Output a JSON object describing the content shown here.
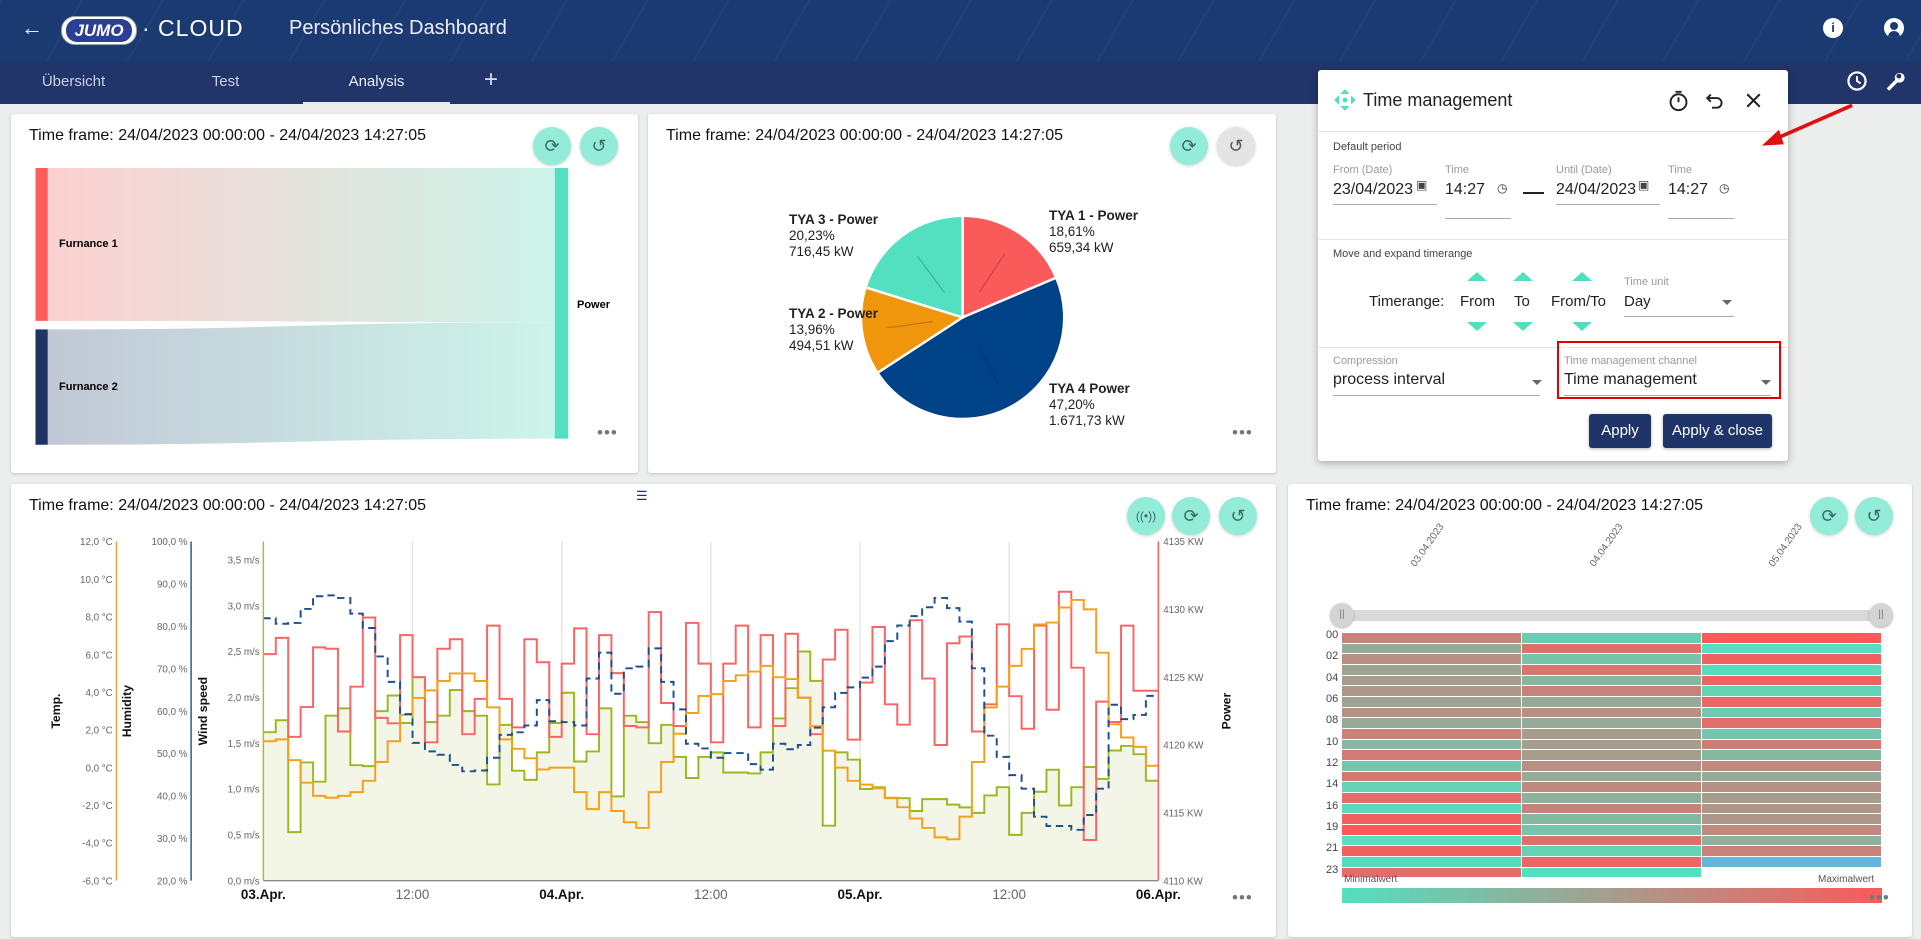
{
  "header": {
    "logo_text": "JUMO",
    "logo_suffix": "· CLOUD",
    "title": "Persönliches Dashboard",
    "icons": [
      "back-arrow-icon",
      "info-icon",
      "account-icon",
      "clock-icon",
      "wrench-icon"
    ]
  },
  "tabs": [
    {
      "label": "Übersicht",
      "active": false
    },
    {
      "label": "Test",
      "active": false
    },
    {
      "label": "Analysis",
      "active": true
    }
  ],
  "add_tab_label": "+",
  "colors": {
    "accent": "#93ecd8",
    "header": "#1c3a72",
    "tabbar": "#22356a",
    "button": "#1f3469",
    "highlight_box": "#e00000"
  },
  "sankey_card": {
    "time_frame": "Time frame: 24/04/2023 00:00:00 - 24/04/2023 14:27:05",
    "more": "•••",
    "chart_data": {
      "type": "sankey",
      "sources": [
        {
          "name": "Furnance 1",
          "share": 0.57,
          "color": "#ff5c5c"
        },
        {
          "name": "Furnance 2",
          "share": 0.43,
          "color": "#1f3462"
        }
      ],
      "target": {
        "name": "Power",
        "color": "#52e0c0"
      }
    }
  },
  "pie_card": {
    "time_frame": "Time frame: 24/04/2023 00:00:00 - 24/04/2023 14:27:05",
    "more": "•••",
    "chart_data": {
      "type": "pie",
      "slices": [
        {
          "name": "TYA 1 - Power",
          "percent": "18,61%",
          "value_label": "659,34 kW",
          "value": 659.34,
          "color": "#fa5a5a"
        },
        {
          "name": "TYA 4 Power",
          "percent": "47,20%",
          "value_label": "1.671,73 kW",
          "value": 1671.73,
          "color": "#004288"
        },
        {
          "name": "TYA 2 - Power",
          "percent": "13,96%",
          "value_label": "494,51 kW",
          "value": 494.51,
          "color": "#f0960c"
        },
        {
          "name": "TYA 3 - Power",
          "percent": "20,23%",
          "value_label": "716,45 kW",
          "value": 716.45,
          "color": "#52e0c0"
        }
      ]
    }
  },
  "line_card": {
    "time_frame": "Time frame: 24/04/2023 00:00:00 - 24/04/2023 14:27:05",
    "more": "•••",
    "chart_data": {
      "type": "line",
      "step": true,
      "x_range": [
        "03.Apr. 00:00",
        "06.Apr. 00:00"
      ],
      "interval": "1h",
      "x_ticks": [
        {
          "label": "03.Apr.",
          "bold": true
        },
        {
          "label": "12:00",
          "bold": false
        },
        {
          "label": "04.Apr.",
          "bold": true
        },
        {
          "label": "12:00",
          "bold": false
        },
        {
          "label": "05.Apr.",
          "bold": true
        },
        {
          "label": "12:00",
          "bold": false
        },
        {
          "label": "06.Apr.",
          "bold": true
        }
      ],
      "grid": "vertical",
      "axes": {
        "temp": {
          "title": "Temp.",
          "range": [
            -6,
            12
          ],
          "ticks": [
            "12,0 °C",
            "10,0 °C",
            "8,0 °C",
            "6,0 °C",
            "4,0 °C",
            "2,0 °C",
            "0,0 °C",
            "-2,0 °C",
            "-4,0 °C",
            "-6,0 °C"
          ],
          "color": "#f0a030"
        },
        "humidity": {
          "title": "Humidity",
          "range": [
            20,
            100
          ],
          "ticks": [
            "100,0 %",
            "90,0 %",
            "80,0 %",
            "70,0 %",
            "60,0 %",
            "50,0 %",
            "40,0 %",
            "30,0 %",
            "20,0 %"
          ],
          "color": "#1f5aa0"
        },
        "wind": {
          "title": "Wind speed",
          "range": [
            0,
            3.7
          ],
          "ticks": [
            "3,5 m/s",
            "3,0 m/s",
            "2,5 m/s",
            "2,0 m/s",
            "1,5 m/s",
            "1,0 m/s",
            "0,5 m/s",
            "0,0 m/s"
          ],
          "tick_values": [
            3.5,
            3,
            2.5,
            2,
            1.5,
            1,
            0.5,
            0
          ],
          "color": "#a8c030"
        },
        "power": {
          "title": "Power",
          "range": [
            4110,
            4135
          ],
          "ticks": [
            "4135 KW",
            "4130 KW",
            "4125 KW",
            "4120 KW",
            "4115 KW",
            "4110 KW"
          ],
          "color": "#fa6060"
        }
      },
      "series": [
        {
          "axis": "wind",
          "color": "#9ab820",
          "fill": "#f3f6e6",
          "dashed": false,
          "values": [
            1.62,
            1.75,
            0.53,
            1.29,
            1.08,
            1.8,
            1.88,
            1.26,
            1.25,
            1.85,
            2.02,
            1.72,
            2.22,
            1.73,
            1.8,
            2.08,
            1.85,
            1.8,
            1.05,
            1.7,
            1.2,
            1.1,
            1.4,
            1.72,
            2.05,
            1.3,
            1.41,
            1.88,
            0.92,
            1.8,
            1.73,
            1.5,
            1.7,
            1.35,
            1.12,
            1.35,
            1.4,
            1.18,
            1.18,
            1.17,
            1.4,
            1.77,
            2.1,
            2.5,
            2.18,
            0.6,
            1.4,
            1.32,
            1.0,
            1.02,
            0.9,
            0.9,
            0.76,
            0.89,
            0.89,
            0.83,
            0.8,
            0.74,
            0.93,
            1.02,
            0.5,
            0.74,
            0.97,
            1.21,
            0.82,
            1.02,
            1.24,
            1.11,
            1.42,
            1.47,
            1.38,
            1.09
          ]
        },
        {
          "axis": "power",
          "color": "#fa6464",
          "fill": null,
          "dashed": false,
          "values": [
            4126.7,
            4127.9,
            4120.6,
            4122.8,
            4127.2,
            4127.1,
            4121.0,
            4124.3,
            4129.4,
            4122.0,
            4121.6,
            4128.1,
            4125.0,
            4120.2,
            4127.1,
            4127.8,
            4120.8,
            4123.4,
            4128.8,
            4123.4,
            4121.3,
            4127.8,
            4126.1,
            4120.6,
            4126.0,
            4128.6,
            4120.8,
            4128.1,
            4125.3,
            4121.4,
            4121.3,
            4129.8,
            4123.1,
            4121.4,
            4129.0,
            4126.0,
            4120.2,
            4126.0,
            4128.8,
            4121.3,
            4128.1,
            4121.4,
            4128.2,
            4123.5,
            4120.8,
            4126.3,
            4128.5,
            4120.4,
            4124.6,
            4128.7,
            4123.0,
            4121.5,
            4129.2,
            4124.9,
            4120.0,
            4127.5,
            4128.0,
            4121.0,
            4123.0,
            4128.9,
            4123.6,
            4121.2,
            4128.8,
            4122.6,
            4131.3,
            4125.7,
            4113.0,
            4123.2,
            4121.7,
            4128.8,
            4124.0,
            4124.0
          ]
        },
        {
          "axis": "temp",
          "color": "#f5a01a",
          "fill": null,
          "dashed": false,
          "values": [
            1.4,
            1.5,
            0.4,
            -0.8,
            -1.5,
            -1.6,
            -1.5,
            -1.3,
            -0.7,
            0.3,
            1.4,
            2.8,
            3.7,
            4.1,
            4.6,
            5.0,
            5.0,
            4.6,
            3.2,
            1.5,
            1.0,
            0.5,
            -0.1,
            0.0,
            0.0,
            -1.3,
            -2.2,
            -1.3,
            -2.3,
            -2.9,
            -3.2,
            -1.3,
            0.3,
            1.8,
            2.9,
            3.8,
            3.9,
            4.6,
            4.9,
            5.1,
            5.4,
            4.8,
            4.7,
            3.7,
            2.2,
            0.9,
            0.0,
            -0.7,
            -0.9,
            -1.1,
            -1.6,
            -2.1,
            -2.7,
            -3.2,
            -3.7,
            -3.8,
            -2.6,
            0.3,
            3.2,
            4.3,
            5.4,
            6.3,
            7.6,
            7.7,
            8.5,
            8.9,
            8.4,
            6.1,
            2.3,
            1.6,
            1.1,
            0.1
          ]
        },
        {
          "axis": "humidity",
          "color": "#1f4f8f",
          "fill": null,
          "dashed": true,
          "values": [
            81.9,
            80.6,
            80.8,
            84.1,
            87.1,
            87.3,
            86.7,
            83.0,
            79.6,
            72.9,
            66.9,
            59.3,
            52.5,
            50.5,
            49.7,
            47.3,
            45.8,
            46.0,
            49.0,
            54.4,
            55.0,
            56.6,
            62.6,
            57.6,
            57.4,
            56.6,
            67.7,
            73.8,
            64.1,
            70.1,
            70.5,
            74.8,
            66.9,
            60.4,
            52.3,
            51.2,
            49.0,
            50.1,
            50.1,
            47.5,
            46.2,
            52.3,
            51.0,
            52.0,
            56.1,
            60.9,
            64.3,
            65.6,
            67.9,
            70.5,
            76.5,
            80.2,
            82.4,
            84.5,
            86.7,
            84.3,
            81.1,
            70.1,
            54.2,
            49.2,
            44.9,
            41.7,
            35.1,
            32.9,
            32.9,
            32.0,
            35.5,
            41.7,
            61.5,
            58.1,
            59.1,
            63.6
          ]
        }
      ]
    }
  },
  "heatmap_card": {
    "time_frame": "Time frame: 24/04/2023 00:00:00 - 24/04/2023 14:27:05",
    "more": "•••",
    "chart_data": {
      "type": "heatmap",
      "columns": [
        "03.04.2023",
        "04.04.2023",
        "05.04.2023"
      ],
      "row_labels": [
        "00",
        "02",
        "04",
        "06",
        "08",
        "10",
        "12",
        "14",
        "16",
        "19",
        "21",
        "23"
      ],
      "min_label": "Minimalwert",
      "max_label": "Maximalwert",
      "min_color": "#52e0c0",
      "max_color": "#fa5a5a",
      "special_color": "#66b4dc",
      "values": [
        [
          0.7,
          0.4,
          0.6,
          0.45,
          0.5,
          0.55,
          0.45,
          0.6,
          0.4,
          0.7,
          0.3,
          0.75,
          0.2,
          0.8,
          0.1,
          0.85,
          0.05,
          0.95,
          1.0,
          0.0,
          0.95,
          0.05,
          0.85
        ],
        [
          0.15,
          0.85,
          0.2,
          0.8,
          0.3,
          0.7,
          0.4,
          0.6,
          0.4,
          0.5,
          0.5,
          0.5,
          0.6,
          0.4,
          0.65,
          0.35,
          0.7,
          0.3,
          0.2,
          0.85,
          0.1,
          0.9,
          0.0
        ],
        [
          1.0,
          0.0,
          0.95,
          0.05,
          0.95,
          0.1,
          0.9,
          0.15,
          0.85,
          0.2,
          0.75,
          0.3,
          0.65,
          0.4,
          0.6,
          0.5,
          0.55,
          0.55,
          0.65,
          0.35,
          0.7,
          "special"
        ]
      ]
    }
  },
  "time_management": {
    "title": "Time management",
    "default_period_label": "Default period",
    "from_date_label": "From (Date)",
    "from_date": "23/04/2023",
    "from_time_label": "Time",
    "from_time": "14:27",
    "until_date_label": "Until (Date)",
    "until_date": "24/04/2023",
    "until_time_label": "Time",
    "until_time": "14:27",
    "move_label": "Move and expand timerange",
    "timerange_label": "Timerange:",
    "from_label": "From",
    "to_label": "To",
    "fromto_label": "From/To",
    "time_unit_label": "Time unit",
    "time_unit": "Day",
    "compression_label": "Compression",
    "compression": "process interval",
    "channel_label": "Time management channel",
    "channel": "Time management",
    "apply": "Apply",
    "apply_close": "Apply & close"
  }
}
